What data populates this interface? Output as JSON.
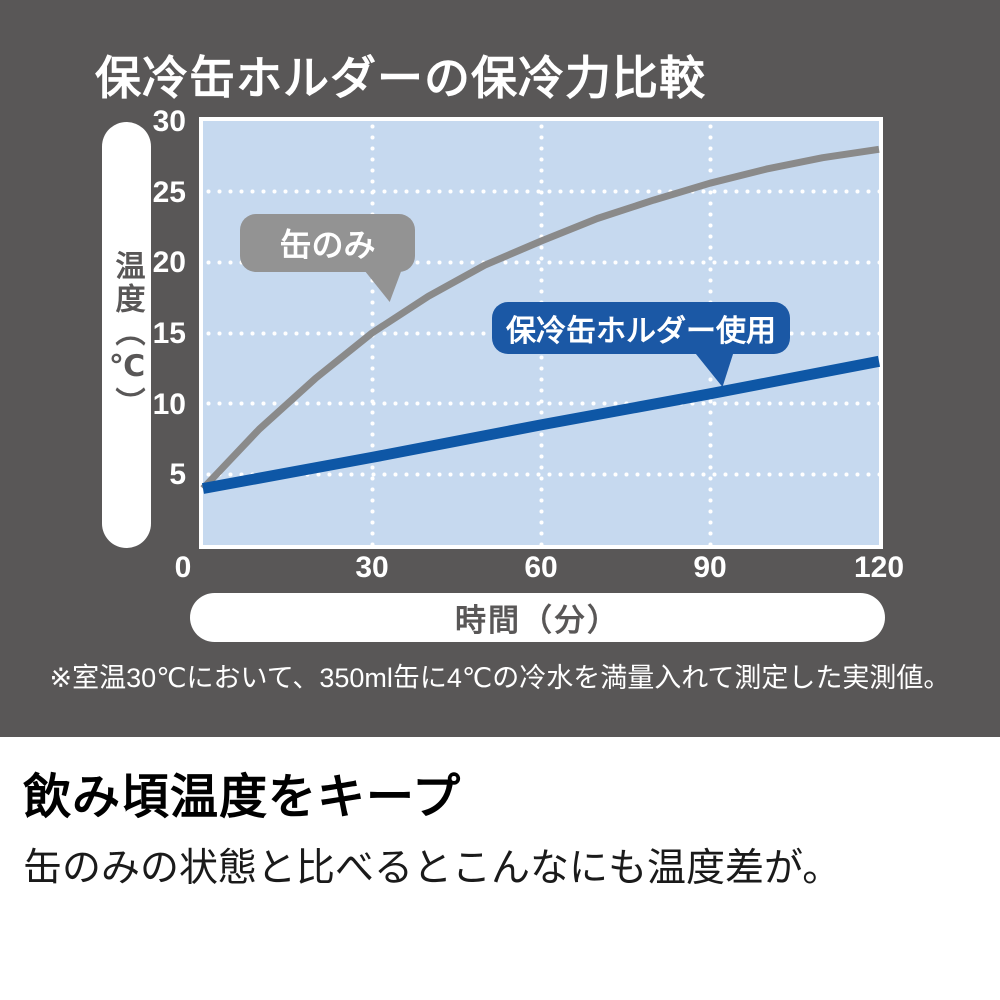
{
  "figure": {
    "title": "保冷缶ホルダーの保冷力比較",
    "y_axis_label": "温度（℃）",
    "x_axis_label": "時間（分）",
    "footnote": "※室温30℃において、350ml缶に4℃の冷水を満量入れて測定した実測値。",
    "colors": {
      "panel_background": "#595757",
      "plot_background": "#c6d9ef",
      "grid": "#ffffff",
      "can_only_line": "#8a8a8a",
      "can_only_bubble": "#939393",
      "holder_line": "#0e57a6",
      "holder_bubble": "#1b58a5"
    }
  },
  "chart_data": {
    "type": "line",
    "title": "保冷缶ホルダーの保冷力比較",
    "xlabel": "時間（分）",
    "ylabel": "温度（℃）",
    "xlim": [
      0,
      120
    ],
    "ylim": [
      0,
      30
    ],
    "x_ticks": [
      0,
      30,
      60,
      90,
      120
    ],
    "y_ticks": [
      0,
      5,
      10,
      15,
      20,
      25,
      30
    ],
    "grid": true,
    "legend_position": "on-chart speech bubbles",
    "series": [
      {
        "name": "缶のみ",
        "color": "#8a8a8a",
        "stroke_width": 7,
        "x": [
          0,
          10,
          20,
          30,
          40,
          50,
          60,
          70,
          80,
          90,
          100,
          110,
          120
        ],
        "values": [
          4,
          8.2,
          11.8,
          15,
          17.6,
          19.8,
          21.5,
          23.1,
          24.4,
          25.6,
          26.6,
          27.4,
          28
        ]
      },
      {
        "name": "保冷缶ホルダー使用",
        "color": "#0e57a6",
        "stroke_width": 11,
        "x": [
          0,
          30,
          60,
          90,
          120
        ],
        "values": [
          4,
          6.2,
          8.5,
          10.7,
          13
        ]
      }
    ]
  },
  "caption": {
    "heading": "飲み頃温度をキープ",
    "body": "缶のみの状態と比べるとこんなにも温度差が。"
  }
}
